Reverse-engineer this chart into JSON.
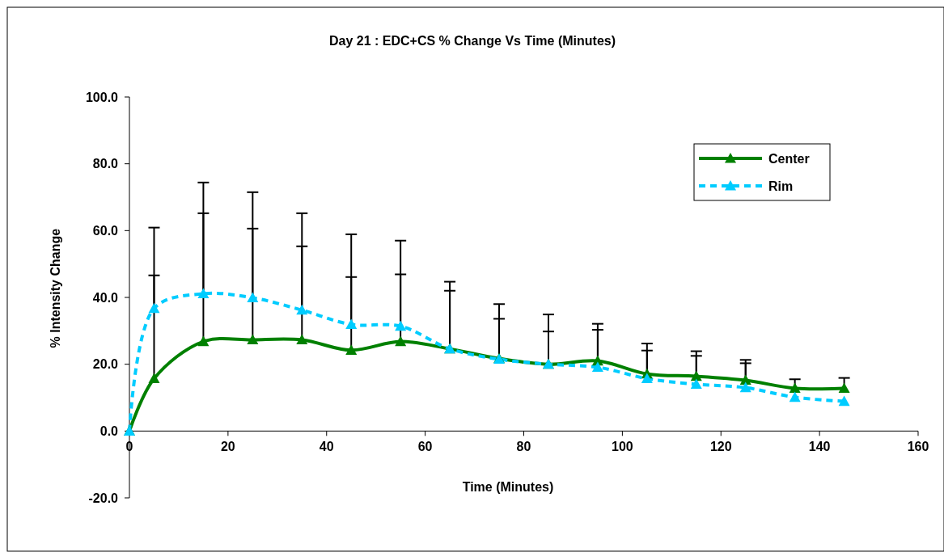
{
  "chart_data": {
    "type": "line",
    "title": "Day 21 : EDC+CS % Change Vs Time (Minutes)",
    "xlabel": "Time (Minutes)",
    "ylabel": "% Intensity Change",
    "x": [
      0,
      5,
      15,
      25,
      35,
      45,
      55,
      65,
      75,
      85,
      95,
      105,
      115,
      125,
      135,
      145
    ],
    "xlim": [
      0,
      160
    ],
    "xticks": [
      0,
      20,
      40,
      60,
      80,
      100,
      120,
      140,
      160
    ],
    "ylim": [
      -20,
      100
    ],
    "yticks": [
      {
        "value": -20,
        "label": "-20.0"
      },
      {
        "value": 0,
        "label": "0.0"
      },
      {
        "value": 20,
        "label": "20.0"
      },
      {
        "value": 40,
        "label": "40.0"
      },
      {
        "value": 60,
        "label": "60.0"
      },
      {
        "value": 80,
        "label": "80.0"
      },
      {
        "value": 100,
        "label": "100.0"
      }
    ],
    "grid": false,
    "legend": "top right",
    "marker": "triangle",
    "series": [
      {
        "name": "Center",
        "color": "#008000",
        "line_style": "solid",
        "values": [
          0,
          15.7,
          26.8,
          27.3,
          27.3,
          24.2,
          26.8,
          24.6,
          21.7,
          20.0,
          21.0,
          17.1,
          16.4,
          15.2,
          12.8,
          12.8
        ],
        "errors": [
          null,
          [
            15.7,
            60.9
          ],
          [
            26.8,
            74.4
          ],
          [
            27.3,
            71.5
          ],
          [
            27.3,
            65.2
          ],
          [
            24.2,
            58.9
          ],
          [
            26.8,
            57.0
          ],
          [
            24.6,
            44.7
          ],
          [
            21.7,
            38.0
          ],
          [
            20.0,
            34.9
          ],
          [
            21.0,
            32.1
          ],
          [
            17.1,
            26.2
          ],
          [
            16.4,
            23.9
          ],
          [
            15.2,
            21.3
          ],
          [
            12.8,
            15.5
          ],
          [
            12.8,
            15.9
          ]
        ]
      },
      {
        "name": "Rim",
        "color": "#00ccff",
        "line_style": "dashed",
        "values": [
          0,
          36.7,
          41.1,
          39.9,
          36.2,
          31.9,
          31.4,
          24.6,
          21.5,
          20.0,
          19.1,
          15.7,
          14.0,
          13.0,
          10.1,
          8.9
        ],
        "errors": [
          null,
          [
            36.7,
            46.6
          ],
          [
            41.1,
            65.2
          ],
          [
            39.9,
            60.6
          ],
          [
            36.2,
            55.3
          ],
          [
            31.9,
            46.1
          ],
          [
            31.4,
            46.9
          ],
          [
            24.6,
            42.0
          ],
          [
            21.5,
            33.6
          ],
          [
            20.0,
            29.8
          ],
          [
            19.1,
            30.3
          ],
          [
            15.7,
            24.1
          ],
          [
            14.0,
            22.5
          ],
          [
            13.0,
            20.3
          ],
          null,
          null
        ]
      }
    ]
  }
}
